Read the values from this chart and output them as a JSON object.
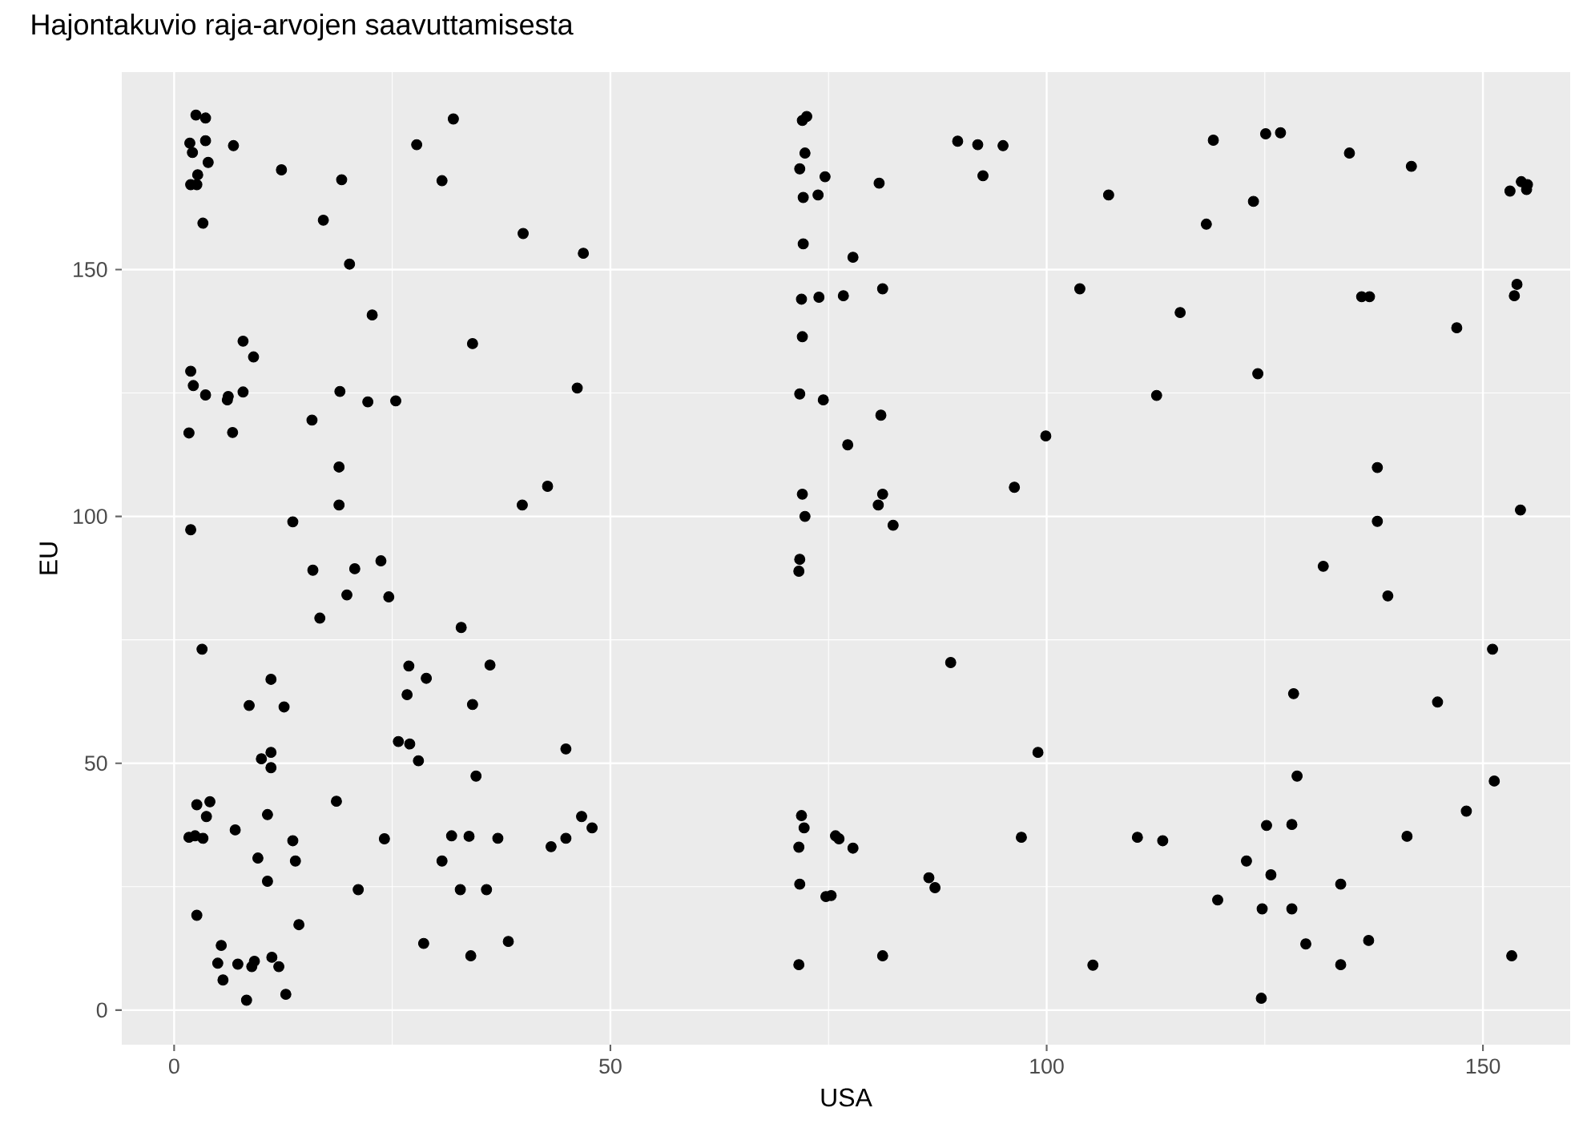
{
  "chart_data": {
    "type": "scatter",
    "title": "Hajontakuvio raja-arvojen saavuttamisesta",
    "xlabel": "USA",
    "ylabel": "EU",
    "xlim": [
      -6,
      160
    ],
    "ylim": [
      -7,
      190
    ],
    "xticks": [
      0,
      50,
      100,
      150
    ],
    "yticks": [
      0,
      50,
      100,
      150
    ],
    "grid": true,
    "marker": "circle",
    "series": [
      {
        "color": "#000000",
        "x": [
          2.5,
          3.6,
          1.8,
          3.6,
          2.1,
          6.8,
          3.9,
          2.7,
          1.9,
          2.6,
          12.3,
          19.2,
          27.8,
          32.0,
          30.7,
          3.3,
          17.1,
          40.0,
          46.9,
          20.1,
          22.7,
          34.2,
          7.9,
          9.1,
          1.9,
          2.2,
          3.6,
          6.1,
          6.2,
          7.9,
          19.0,
          22.2,
          25.4,
          46.2,
          1.7,
          6.7,
          15.8,
          18.9,
          18.9,
          39.9,
          42.8,
          1.9,
          13.6,
          15.9,
          20.7,
          23.7,
          19.8,
          24.6,
          16.7,
          32.9,
          3.2,
          26.9,
          36.2,
          28.9,
          11.1,
          26.7,
          34.2,
          8.6,
          12.6,
          25.7,
          27.0,
          28.0,
          44.9,
          11.1,
          10.0,
          11.1,
          34.6,
          2.6,
          4.1,
          18.6,
          3.7,
          10.7,
          46.7,
          47.9,
          7.0,
          1.7,
          2.4,
          3.3,
          24.1,
          31.8,
          33.8,
          37.1,
          44.9,
          43.2,
          13.6,
          9.6,
          13.9,
          30.7,
          10.7,
          21.1,
          32.8,
          35.8,
          2.6,
          14.3,
          5.4,
          28.6,
          38.3,
          5.0,
          7.3,
          8.9,
          9.2,
          11.2,
          12.0,
          34.0,
          5.6,
          12.8,
          8.3,
          72.0,
          72.5,
          72.3,
          71.7,
          74.6,
          80.8,
          72.1,
          73.8,
          89.8,
          92.1,
          95.0,
          92.7,
          72.1,
          77.8,
          71.9,
          73.9,
          76.7,
          81.2,
          103.8,
          72.0,
          71.7,
          74.4,
          81.0,
          77.2,
          99.9,
          96.3,
          72.0,
          81.2,
          80.7,
          72.3,
          82.4,
          71.7,
          71.6,
          89.0,
          99.0,
          71.9,
          72.2,
          71.6,
          75.8,
          76.2,
          77.8,
          97.1,
          71.7,
          74.7,
          75.3,
          86.5,
          87.2,
          81.2,
          71.6,
          107.1,
          119.1,
          125.1,
          126.8,
          134.7,
          141.8,
          123.7,
          118.3,
          153.1,
          154.4,
          155.1,
          155.0,
          115.3,
          136.1,
          137.0,
          153.9,
          153.6,
          147.0,
          124.2,
          112.6,
          137.9,
          154.3,
          137.9,
          131.7,
          139.1,
          151.1,
          128.3,
          144.8,
          128.7,
          151.3,
          148.1,
          110.4,
          113.3,
          125.2,
          128.1,
          141.3,
          122.9,
          125.7,
          133.7,
          119.6,
          124.7,
          128.1,
          129.7,
          136.9,
          133.7,
          153.3,
          105.3,
          124.6
        ],
        "values": [
          181.3,
          180.7,
          175.6,
          176.1,
          173.7,
          175.1,
          171.7,
          169.2,
          167.2,
          167.2,
          170.2,
          168.2,
          175.3,
          180.5,
          168.0,
          159.4,
          160.0,
          157.3,
          153.3,
          151.1,
          140.8,
          135.0,
          135.5,
          132.3,
          129.4,
          126.5,
          124.6,
          123.6,
          124.3,
          125.2,
          125.3,
          123.2,
          123.4,
          126.0,
          116.9,
          117.0,
          119.5,
          110.0,
          102.3,
          102.3,
          106.1,
          97.3,
          98.9,
          89.1,
          89.4,
          91.0,
          84.1,
          83.7,
          79.4,
          77.5,
          73.1,
          69.7,
          69.9,
          67.2,
          67.0,
          63.9,
          61.9,
          61.7,
          61.4,
          54.4,
          53.9,
          50.5,
          52.9,
          52.2,
          50.9,
          49.1,
          47.4,
          41.6,
          42.2,
          42.3,
          39.2,
          39.6,
          39.2,
          36.9,
          36.5,
          35.0,
          35.3,
          34.8,
          34.7,
          35.3,
          35.2,
          34.8,
          34.8,
          33.1,
          34.3,
          30.8,
          30.2,
          30.2,
          26.1,
          24.4,
          24.4,
          24.4,
          19.2,
          17.3,
          13.1,
          13.5,
          13.9,
          9.5,
          9.3,
          8.8,
          9.9,
          10.7,
          8.8,
          11.0,
          6.1,
          3.2,
          2.0,
          180.2,
          181.0,
          173.6,
          170.4,
          168.8,
          167.5,
          164.6,
          165.1,
          176.0,
          175.3,
          175.1,
          169.0,
          155.2,
          152.5,
          144.0,
          144.4,
          144.7,
          146.1,
          146.1,
          136.4,
          124.8,
          123.6,
          120.5,
          114.5,
          116.3,
          105.9,
          104.5,
          104.5,
          102.3,
          100.0,
          98.2,
          91.3,
          88.9,
          70.4,
          52.2,
          39.4,
          36.9,
          33.0,
          35.3,
          34.7,
          32.8,
          35.0,
          25.5,
          23.0,
          23.2,
          26.8,
          24.8,
          11.0,
          9.2,
          165.1,
          176.2,
          177.5,
          177.7,
          173.6,
          170.9,
          163.8,
          159.2,
          165.9,
          167.8,
          167.2,
          166.2,
          141.3,
          144.5,
          144.5,
          147.0,
          144.7,
          138.2,
          128.9,
          124.5,
          109.9,
          101.3,
          99.0,
          89.9,
          83.9,
          73.1,
          64.1,
          62.4,
          47.4,
          46.4,
          40.3,
          35.0,
          34.3,
          37.4,
          37.6,
          35.2,
          30.2,
          27.4,
          25.5,
          22.3,
          20.5,
          20.5,
          13.4,
          14.1,
          9.2,
          11.0,
          9.1,
          2.4
        ]
      }
    ]
  }
}
